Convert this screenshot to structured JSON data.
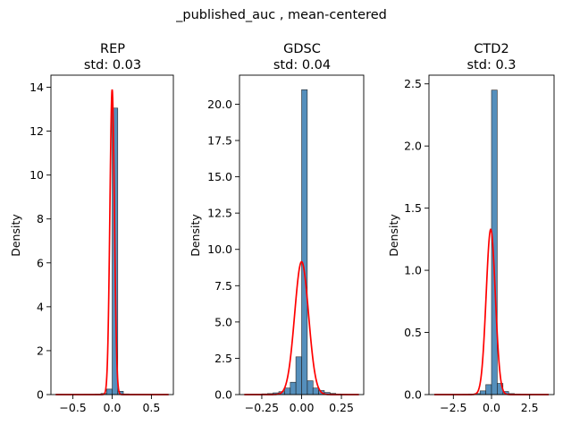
{
  "figure": {
    "suptitle": "_published_auc , mean-centered"
  },
  "chart_data": [
    {
      "type": "bar",
      "title_lines": [
        "REP",
        "std: 0.03"
      ],
      "xlabel": "",
      "ylabel": "Density",
      "xlim": [
        -0.78,
        0.78
      ],
      "ylim": [
        0,
        14.55
      ],
      "xticks": [
        -0.5,
        0.0,
        0.5
      ],
      "xtick_labels": [
        "−0.5",
        "0.0",
        "0.5"
      ],
      "yticks": [
        0,
        2,
        4,
        6,
        8,
        10,
        12,
        14
      ],
      "ytick_labels": [
        "0",
        "2",
        "4",
        "6",
        "8",
        "10",
        "12",
        "14"
      ],
      "histogram": {
        "bin_width": 0.0714,
        "bins": [
          {
            "x0": -0.714,
            "density": 0.01
          },
          {
            "x0": -0.643,
            "density": 0.0
          },
          {
            "x0": -0.571,
            "density": 0.0
          },
          {
            "x0": -0.5,
            "density": 0.01
          },
          {
            "x0": -0.429,
            "density": 0.0
          },
          {
            "x0": -0.357,
            "density": 0.01
          },
          {
            "x0": -0.286,
            "density": 0.01
          },
          {
            "x0": -0.214,
            "density": 0.02
          },
          {
            "x0": -0.143,
            "density": 0.05
          },
          {
            "x0": -0.071,
            "density": 0.25
          },
          {
            "x0": 0.0,
            "density": 13.05
          },
          {
            "x0": 0.071,
            "density": 0.15
          },
          {
            "x0": 0.143,
            "density": 0.03
          },
          {
            "x0": 0.214,
            "density": 0.01
          },
          {
            "x0": 0.286,
            "density": 0.01
          },
          {
            "x0": 0.357,
            "density": 0.0
          },
          {
            "x0": 0.429,
            "density": 0.0
          },
          {
            "x0": 0.5,
            "density": 0.0
          },
          {
            "x0": 0.571,
            "density": 0.0
          },
          {
            "x0": 0.643,
            "density": 0.01
          }
        ]
      },
      "kde": {
        "mean": 0.0,
        "std": 0.0287,
        "range": [
          -0.72,
          0.72
        ]
      }
    },
    {
      "type": "bar",
      "title_lines": [
        "GDSC",
        "std: 0.04"
      ],
      "xlabel": "",
      "ylabel": "Density",
      "xlim": [
        -0.39,
        0.39
      ],
      "ylim": [
        0,
        22.0
      ],
      "xticks": [
        -0.25,
        0.0,
        0.25
      ],
      "xtick_labels": [
        "−0.25",
        "0.00",
        "0.25"
      ],
      "yticks": [
        0.0,
        2.5,
        5.0,
        7.5,
        10.0,
        12.5,
        15.0,
        17.5,
        20.0
      ],
      "ytick_labels": [
        "0.0",
        "2.5",
        "5.0",
        "7.5",
        "10.0",
        "12.5",
        "15.0",
        "17.5",
        "20.0"
      ],
      "histogram": {
        "bin_width": 0.0357,
        "bins": [
          {
            "x0": -0.357,
            "density": 0.0
          },
          {
            "x0": -0.321,
            "density": 0.02
          },
          {
            "x0": -0.286,
            "density": 0.02
          },
          {
            "x0": -0.25,
            "density": 0.05
          },
          {
            "x0": -0.214,
            "density": 0.07
          },
          {
            "x0": -0.179,
            "density": 0.12
          },
          {
            "x0": -0.143,
            "density": 0.2
          },
          {
            "x0": -0.107,
            "density": 0.45
          },
          {
            "x0": -0.071,
            "density": 0.85
          },
          {
            "x0": -0.036,
            "density": 2.6
          },
          {
            "x0": 0.0,
            "density": 21.0
          },
          {
            "x0": 0.036,
            "density": 0.95
          },
          {
            "x0": 0.071,
            "density": 0.45
          },
          {
            "x0": 0.107,
            "density": 0.28
          },
          {
            "x0": 0.143,
            "density": 0.15
          },
          {
            "x0": 0.179,
            "density": 0.08
          },
          {
            "x0": 0.214,
            "density": 0.04
          },
          {
            "x0": 0.25,
            "density": 0.02
          },
          {
            "x0": 0.286,
            "density": 0.01
          },
          {
            "x0": 0.321,
            "density": 0.01
          }
        ]
      },
      "kde": {
        "mean": 0.0,
        "std": 0.0436,
        "range": [
          -0.36,
          0.36
        ]
      }
    },
    {
      "type": "bar",
      "title_lines": [
        "CTD2",
        "std: 0.3"
      ],
      "xlabel": "",
      "ylabel": "Density",
      "xlim": [
        -4.1,
        4.1
      ],
      "ylim": [
        0,
        2.57
      ],
      "xticks": [
        -2.5,
        0.0,
        2.5
      ],
      "xtick_labels": [
        "−2.5",
        "0.0",
        "2.5"
      ],
      "yticks": [
        0.0,
        0.5,
        1.0,
        1.5,
        2.0,
        2.5
      ],
      "ytick_labels": [
        "0.0",
        "0.5",
        "1.0",
        "1.5",
        "2.0",
        "2.5"
      ],
      "histogram": {
        "bin_width": 0.375,
        "bins": [
          {
            "x0": -3.75,
            "density": 0.0
          },
          {
            "x0": -3.375,
            "density": 0.0
          },
          {
            "x0": -3.0,
            "density": 0.0
          },
          {
            "x0": -2.625,
            "density": 0.0
          },
          {
            "x0": -2.25,
            "density": 0.0
          },
          {
            "x0": -1.875,
            "density": 0.002
          },
          {
            "x0": -1.5,
            "density": 0.004
          },
          {
            "x0": -1.125,
            "density": 0.008
          },
          {
            "x0": -0.75,
            "density": 0.03
          },
          {
            "x0": -0.375,
            "density": 0.08
          },
          {
            "x0": 0.0,
            "density": 2.45
          },
          {
            "x0": 0.375,
            "density": 0.09
          },
          {
            "x0": 0.75,
            "density": 0.025
          },
          {
            "x0": 1.125,
            "density": 0.008
          },
          {
            "x0": 1.5,
            "density": 0.004
          },
          {
            "x0": 1.875,
            "density": 0.002
          },
          {
            "x0": 2.25,
            "density": 0.0
          },
          {
            "x0": 2.625,
            "density": 0.0
          },
          {
            "x0": 3.0,
            "density": 0.0
          },
          {
            "x0": 3.375,
            "density": 0.0
          }
        ]
      },
      "kde": {
        "mean": -0.05,
        "std": 0.3,
        "range": [
          -3.75,
          3.75
        ]
      }
    }
  ]
}
